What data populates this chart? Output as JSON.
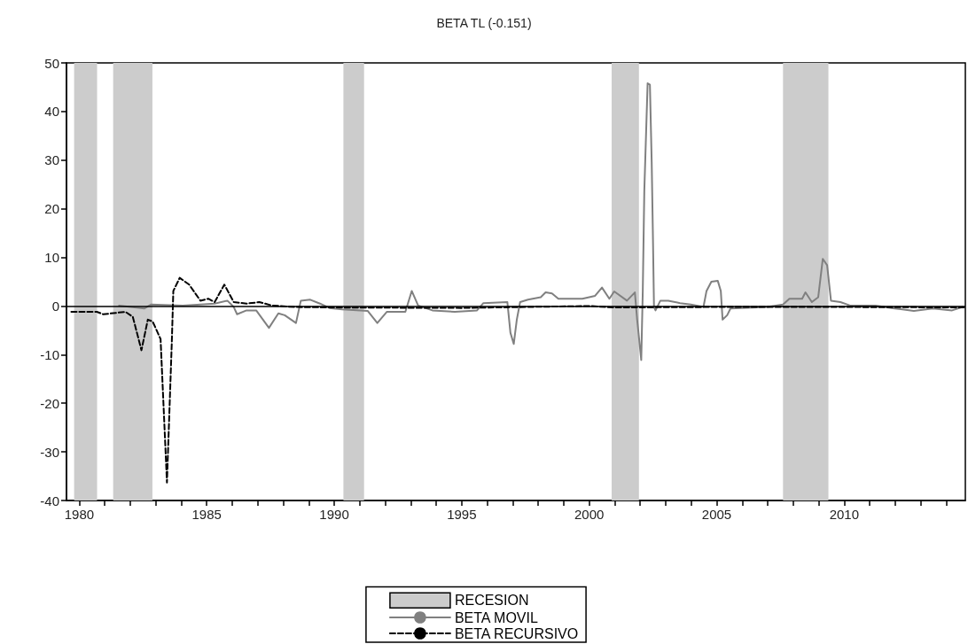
{
  "chart_data": {
    "type": "line",
    "title": "BETA TL (-0.151)",
    "xlim": [
      1979.5,
      2014.75
    ],
    "xticks": [
      1980,
      {
        "value": 1981,
        "label": null
      },
      {
        "value": 1982,
        "label": null
      },
      {
        "value": 1983,
        "label": null
      },
      {
        "value": 1984,
        "label": null
      },
      1985,
      {
        "value": 1986,
        "label": null
      },
      {
        "value": 1987,
        "label": null
      },
      {
        "value": 1988,
        "label": null
      },
      {
        "value": 1989,
        "label": null
      },
      1990,
      {
        "value": 1991,
        "label": null
      },
      {
        "value": 1992,
        "label": null
      },
      {
        "value": 1993,
        "label": null
      },
      {
        "value": 1994,
        "label": null
      },
      1995,
      {
        "value": 1996,
        "label": null
      },
      {
        "value": 1997,
        "label": null
      },
      {
        "value": 1998,
        "label": null
      },
      {
        "value": 1999,
        "label": null
      },
      2000,
      {
        "value": 2001,
        "label": null
      },
      {
        "value": 2002,
        "label": null
      },
      {
        "value": 2003,
        "label": null
      },
      {
        "value": 2004,
        "label": null
      },
      2005,
      {
        "value": 2006,
        "label": null
      },
      {
        "value": 2007,
        "label": null
      },
      {
        "value": 2008,
        "label": null
      },
      {
        "value": 2009,
        "label": null
      },
      2010,
      {
        "value": 2011,
        "label": null
      },
      {
        "value": 2012,
        "label": null
      },
      {
        "value": 2013,
        "label": null
      },
      {
        "value": 2014,
        "label": null
      }
    ],
    "ylim": [
      -40,
      50
    ],
    "yticks": [
      -40,
      -30,
      -20,
      -10,
      0,
      10,
      20,
      30,
      40,
      50
    ],
    "grid": false,
    "legend": "bottom",
    "marker": "none",
    "bands": [
      {
        "axis": "x",
        "from": 1979.8,
        "to": 1980.7,
        "label": "RECESION",
        "color": "#cccccc"
      },
      {
        "axis": "x",
        "from": 1981.33,
        "to": 1982.87,
        "color": "#cccccc"
      },
      {
        "axis": "x",
        "from": 1990.36,
        "to": 1991.17,
        "color": "#cccccc"
      },
      {
        "axis": "x",
        "from": 2000.88,
        "to": 2001.95,
        "color": "#cccccc"
      },
      {
        "axis": "x",
        "from": 2007.6,
        "to": 2009.38,
        "color": "#cccccc"
      }
    ],
    "ref_lines": [
      {
        "axis": "y",
        "value": 0,
        "color": "#000000",
        "line_style": "solid"
      }
    ],
    "series": [
      {
        "name": "BETA MOVIL",
        "color": "#808080",
        "line_style": "solid",
        "x": [
          1981.56,
          1982.56,
          1982.81,
          1984.06,
          1985.31,
          1985.81,
          1986.06,
          1986.19,
          1986.56,
          1986.94,
          1987.44,
          1987.81,
          1988.06,
          1988.5,
          1988.69,
          1989.06,
          1989.44,
          1989.81,
          1990.31,
          1991.31,
          1991.69,
          1992.06,
          1992.69,
          1992.79,
          1993.04,
          1993.29,
          1993.85,
          1994.73,
          1995.6,
          1995.85,
          1996.79,
          1996.91,
          1997.04,
          1997.16,
          1997.29,
          1997.6,
          1998.1,
          1998.29,
          1998.54,
          1998.79,
          1999.73,
          2000.23,
          2000.5,
          2000.79,
          2000.98,
          2001.48,
          2001.79,
          2001.88,
          2002.04,
          2002.1,
          2002.16,
          2002.29,
          2002.38,
          2002.45,
          2002.5,
          2002.54,
          2002.6,
          2002.79,
          2003.1,
          2003.56,
          2003.98,
          2004.48,
          2004.6,
          2004.79,
          2005.04,
          2005.16,
          2005.23,
          2005.41,
          2005.54,
          2006.98,
          2007.6,
          2007.85,
          2008.35,
          2008.48,
          2008.73,
          2008.98,
          2009.16,
          2009.33,
          2009.48,
          2009.85,
          2010.23,
          2011.23,
          2011.98,
          2012.73,
          2013.48,
          2014.23,
          2014.64
        ],
        "values": [
          0.1,
          -0.5,
          0.3,
          0.1,
          0.5,
          1.1,
          -0.2,
          -1.7,
          -0.9,
          -0.9,
          -4.5,
          -1.5,
          -1.9,
          -3.5,
          1.1,
          1.3,
          0.5,
          -0.4,
          -0.7,
          -1.0,
          -3.5,
          -1.2,
          -1.2,
          -1.2,
          3.1,
          0.1,
          -0.9,
          -1.2,
          -0.9,
          0.6,
          0.8,
          -5.5,
          -7.8,
          -2.8,
          0.8,
          1.3,
          1.8,
          2.8,
          2.6,
          1.5,
          1.5,
          2.1,
          3.8,
          1.5,
          3.0,
          1.1,
          2.8,
          -2.8,
          -11.1,
          3.1,
          23.6,
          45.8,
          45.5,
          29.6,
          13.7,
          -0.2,
          -0.9,
          1.1,
          1.1,
          0.6,
          0.3,
          -0.2,
          3.1,
          5.0,
          5.2,
          3.1,
          -2.8,
          -1.9,
          -0.5,
          -0.2,
          0.3,
          1.5,
          1.5,
          2.8,
          0.8,
          1.8,
          9.7,
          8.4,
          1.1,
          0.8,
          0.1,
          0.1,
          -0.5,
          -1.0,
          -0.5,
          -0.9,
          -0.2
        ]
      },
      {
        "name": "BETA RECURSIVO",
        "color": "#000000",
        "line_style": "dashed",
        "x": [
          1979.69,
          1980.69,
          1980.94,
          1981.81,
          1982.1,
          1982.44,
          1982.69,
          1982.88,
          1983.19,
          1983.44,
          1983.63,
          1983.69,
          1983.94,
          1984.31,
          1984.75,
          1985.06,
          1985.31,
          1985.69,
          1986.06,
          1986.56,
          1987.06,
          1987.56,
          1988.44,
          1990,
          1995,
          2000,
          2001,
          2005,
          2010,
          2014.7
        ],
        "values": [
          -1.2,
          -1.2,
          -1.7,
          -1.2,
          -2.2,
          -9.1,
          -2.8,
          -3.2,
          -6.8,
          -36.3,
          -7.5,
          3.1,
          5.8,
          4.4,
          1.1,
          1.5,
          0.8,
          4.4,
          0.8,
          0.5,
          0.8,
          0.1,
          -0.2,
          -0.3,
          -0.4,
          0,
          -0.3,
          -0.2,
          -0.2,
          -0.3
        ]
      }
    ]
  }
}
